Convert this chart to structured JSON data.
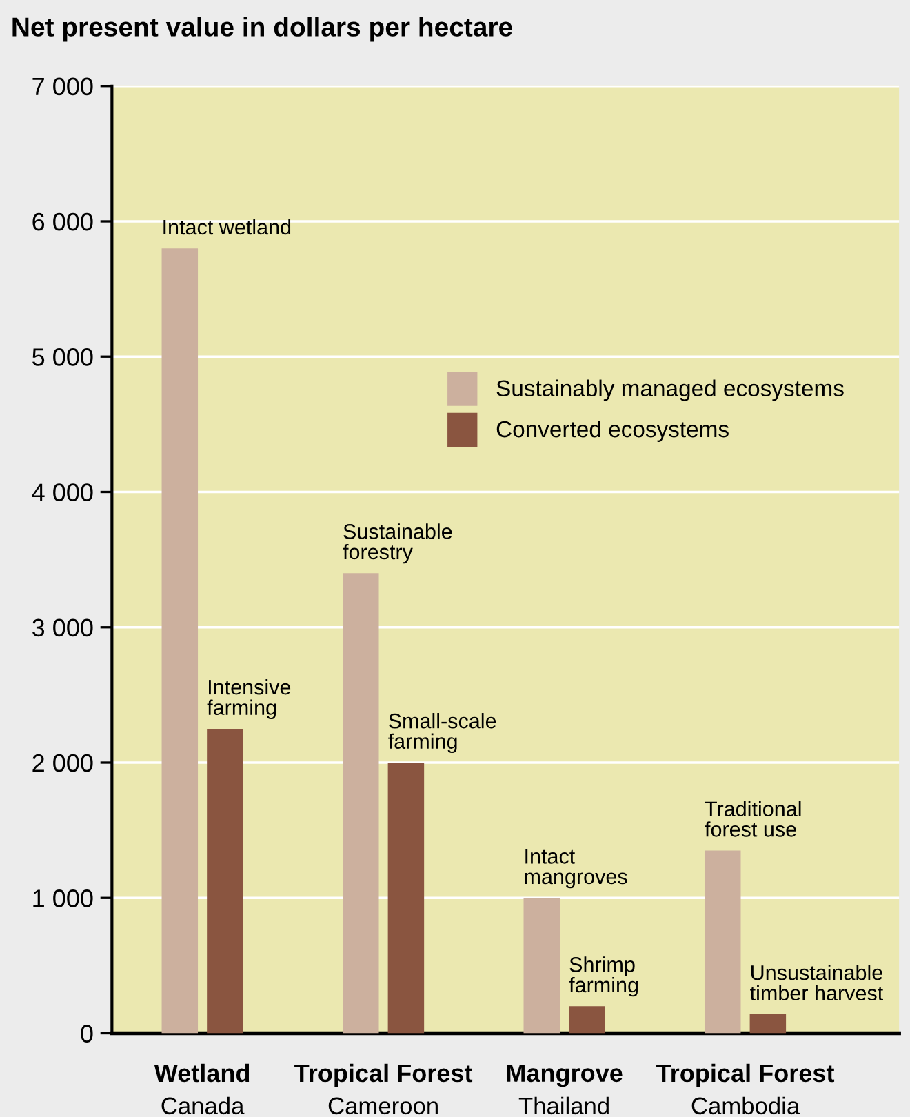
{
  "chart_data": {
    "type": "bar",
    "title": "Net present value in dollars per hectare",
    "categories": [
      "Wetland\nCanada",
      "Tropical Forest\nCameroon",
      "Mangrove\nThailand",
      "Tropical Forest\nCambodia"
    ],
    "series": [
      {
        "name": "Sustainably managed ecosystems",
        "color": "#ccb09e",
        "values": [
          5800,
          3400,
          1000,
          1350
        ]
      },
      {
        "name": "Converted ecosystems",
        "color": "#8a5540",
        "values": [
          2250,
          2000,
          200,
          140
        ]
      }
    ],
    "ylim": [
      0,
      7000
    ],
    "yticks": [
      {
        "value": 0,
        "label": "0"
      },
      {
        "value": 1000,
        "label": "1 000"
      },
      {
        "value": 2000,
        "label": "2 000"
      },
      {
        "value": 3000,
        "label": "3 000"
      },
      {
        "value": 4000,
        "label": "4 000"
      },
      {
        "value": 5000,
        "label": "5 000"
      },
      {
        "value": 6000,
        "label": "6 000"
      },
      {
        "value": 7000,
        "label": "7 000"
      }
    ],
    "grid": "y",
    "legend": "top right",
    "annotations": [
      {
        "text": "Intact wetland",
        "x": "Wetland\nCanada",
        "y": 5800
      },
      {
        "text": "Intensive\nfarming",
        "x": "Wetland\nCanada",
        "y": 2250
      },
      {
        "text": "Sustainable\nforestry",
        "x": "Tropical Forest\nCameroon",
        "y": 3400
      },
      {
        "text": "Small-scale\nfarming",
        "x": "Tropical Forest\nCameroon",
        "y": 2000
      },
      {
        "text": "Intact\nmangroves",
        "x": "Mangrove\nThailand",
        "y": 1000
      },
      {
        "text": "Shrimp\nfarming",
        "x": "Mangrove\nThailand",
        "y": 200
      },
      {
        "text": "Traditional\nforest use",
        "x": "Tropical Forest\nCambodia",
        "y": 1350
      },
      {
        "text": "Unsustainable\ntimber harvest",
        "x": "Tropical Forest\nCambodia",
        "y": 140
      }
    ]
  }
}
